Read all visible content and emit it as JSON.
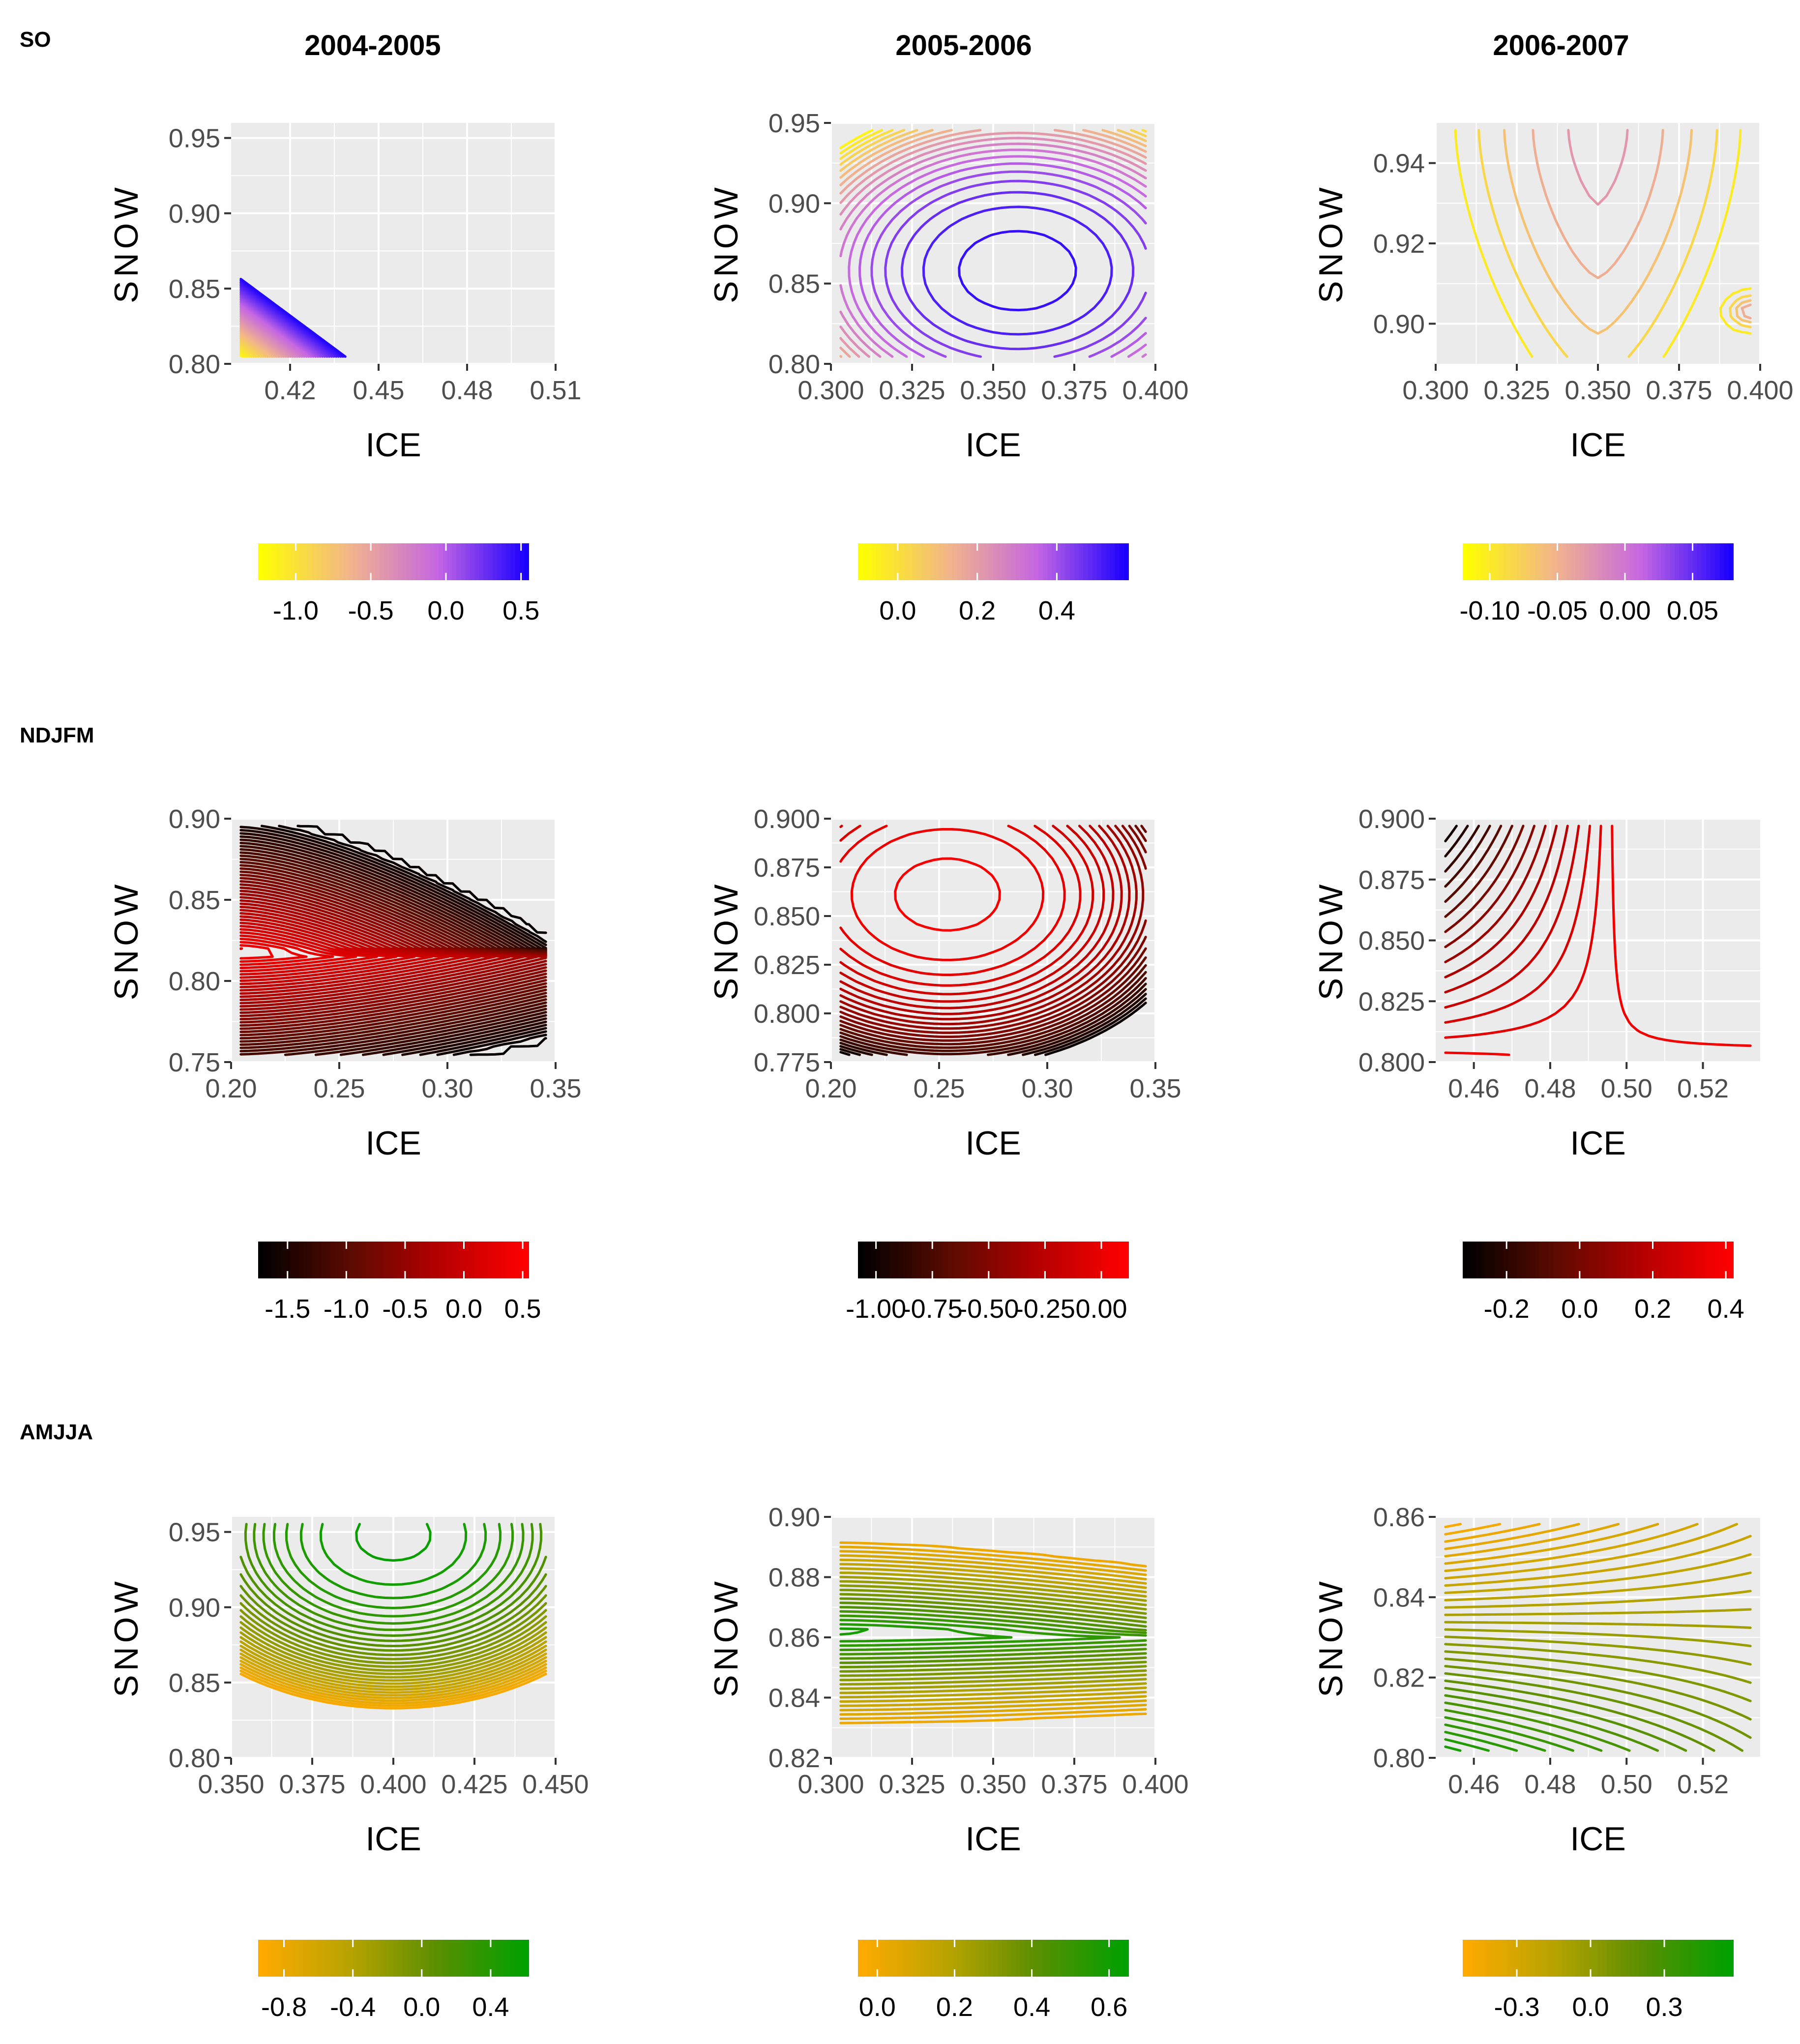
{
  "figure": {
    "column_titles": [
      "2004-2005",
      "2005-2006",
      "2006-2007"
    ],
    "row_labels": [
      "SO",
      "NDJFM",
      "AMJJA"
    ],
    "xlabel": "ICE",
    "ylabel": "SNOW"
  },
  "chart_data": [
    {
      "type": "contour",
      "row": "SO",
      "season": "SO",
      "year": "2004-2005",
      "xlabel": "ICE",
      "ylabel": "SNOW",
      "xlim": [
        0.4,
        0.51
      ],
      "ylim": [
        0.8,
        0.96
      ],
      "xticks": [
        0.42,
        0.45,
        0.48,
        0.51
      ],
      "xtick_labels": [
        "0.42",
        "0.45",
        "0.48",
        "0.51"
      ],
      "yticks": [
        0.8,
        0.85,
        0.9,
        0.95
      ],
      "ytick_labels": [
        "0.80",
        "0.85",
        "0.90",
        "0.95"
      ],
      "colorbar": {
        "colors": [
          "#ffff00",
          "#f2b58a",
          "#c566e3",
          "#1a00ff"
        ],
        "range": [
          -1.25,
          0.55
        ],
        "ticks": [
          -1.0,
          -0.5,
          0.0,
          0.5
        ],
        "tick_labels": [
          "-1.0",
          "-0.5",
          "0.0",
          "0.5"
        ]
      },
      "field": {
        "type": "plane",
        "v0": -1.2,
        "gx": 5,
        "gy": 5,
        "q": 0,
        "levels": 48
      }
    },
    {
      "type": "contour",
      "row": "SO",
      "season": "SO",
      "year": "2005-2006",
      "xlabel": "ICE",
      "ylabel": "SNOW",
      "xlim": [
        0.3,
        0.4
      ],
      "ylim": [
        0.8,
        0.95
      ],
      "xticks": [
        0.3,
        0.325,
        0.35,
        0.375,
        0.4
      ],
      "xtick_labels": [
        "0.300",
        "0.325",
        "0.350",
        "0.375",
        "0.400"
      ],
      "yticks": [
        0.8,
        0.85,
        0.9,
        0.95
      ],
      "ytick_labels": [
        "0.80",
        "0.85",
        "0.90",
        "0.95"
      ],
      "colorbar": {
        "colors": [
          "#ffff00",
          "#f2b58a",
          "#c566e3",
          "#1a00ff"
        ],
        "range": [
          -0.1,
          0.58
        ],
        "ticks": [
          0.0,
          0.2,
          0.4
        ],
        "tick_labels": [
          "0.0",
          "0.2",
          "0.4"
        ]
      },
      "field": {
        "type": "bowl",
        "vmax": 0.56,
        "v0": -0.08,
        "cx": 0.58,
        "cy": 0.38,
        "p": 1.3,
        "levels": 20
      }
    },
    {
      "type": "contour",
      "row": "SO",
      "season": "SO",
      "year": "2006-2007",
      "xlabel": "ICE",
      "ylabel": "SNOW",
      "xlim": [
        0.3,
        0.4
      ],
      "ylim": [
        0.89,
        0.95
      ],
      "xticks": [
        0.3,
        0.325,
        0.35,
        0.375,
        0.4
      ],
      "xtick_labels": [
        "0.300",
        "0.325",
        "0.350",
        "0.375",
        "0.400"
      ],
      "yticks": [
        0.9,
        0.92,
        0.94
      ],
      "ytick_labels": [
        "0.90",
        "0.92",
        "0.94"
      ],
      "colorbar": {
        "colors": [
          "#ffff00",
          "#f2b58a",
          "#c566e3",
          "#1a00ff"
        ],
        "range": [
          -0.12,
          0.08
        ],
        "ticks": [
          -0.1,
          -0.05,
          0.0,
          0.05
        ],
        "tick_labels": [
          "-0.10",
          "-0.05",
          "0.00",
          "0.05"
        ]
      },
      "field": {
        "type": "basin",
        "vmax": -0.02,
        "v0": -0.11,
        "cx": 0.5,
        "cy": 1.0,
        "spike": 0.08,
        "levels": 11
      }
    },
    {
      "type": "contour",
      "row": "NDJFM",
      "season": "NDJFM",
      "year": "2004-2005",
      "xlabel": "ICE",
      "ylabel": "SNOW",
      "xlim": [
        0.2,
        0.35
      ],
      "ylim": [
        0.75,
        0.9
      ],
      "xticks": [
        0.2,
        0.25,
        0.3,
        0.35
      ],
      "xtick_labels": [
        "0.20",
        "0.25",
        "0.30",
        "0.35"
      ],
      "yticks": [
        0.75,
        0.8,
        0.85,
        0.9
      ],
      "ytick_labels": [
        "0.75",
        "0.80",
        "0.85",
        "0.90"
      ],
      "colorbar": {
        "colors": [
          "#000000",
          "#5a0b00",
          "#b40000",
          "#ff0000"
        ],
        "range": [
          -1.75,
          0.55
        ],
        "ticks": [
          -1.5,
          -1.0,
          -0.5,
          0.0,
          0.5
        ],
        "tick_labels": [
          "-1.5",
          "-1.0",
          "-0.5",
          "0.0",
          "0.5"
        ]
      },
      "field": {
        "type": "ridge",
        "vmax": 0.5,
        "v0": -1.7,
        "cy": 0.45,
        "sy": 1.7,
        "gx": 0.9,
        "levels": 44
      }
    },
    {
      "type": "contour",
      "row": "NDJFM",
      "season": "NDJFM",
      "year": "2005-2006",
      "xlabel": "ICE",
      "ylabel": "SNOW",
      "xlim": [
        0.2,
        0.35
      ],
      "ylim": [
        0.775,
        0.9
      ],
      "xticks": [
        0.2,
        0.25,
        0.3,
        0.35
      ],
      "xtick_labels": [
        "0.20",
        "0.25",
        "0.30",
        "0.35"
      ],
      "yticks": [
        0.775,
        0.8,
        0.825,
        0.85,
        0.875,
        0.9
      ],
      "ytick_labels": [
        "0.775",
        "0.800",
        "0.825",
        "0.850",
        "0.875",
        "0.900"
      ],
      "colorbar": {
        "colors": [
          "#000000",
          "#5a0b00",
          "#b40000",
          "#ff0000"
        ],
        "range": [
          -1.08,
          0.12
        ],
        "ticks": [
          -1.0,
          -0.75,
          -0.5,
          -0.25,
          0.0
        ],
        "tick_labels": [
          "-1.00",
          "-0.75",
          "-0.50",
          "-0.25",
          "0.00"
        ]
      },
      "field": {
        "type": "bowl",
        "vmax": 0.08,
        "v0": -1.05,
        "cx": 0.35,
        "cy": 0.7,
        "p": 1.5,
        "levels": 24
      }
    },
    {
      "type": "contour",
      "row": "NDJFM",
      "season": "NDJFM",
      "year": "2006-2007",
      "xlabel": "ICE",
      "ylabel": "SNOW",
      "xlim": [
        0.45,
        0.535
      ],
      "ylim": [
        0.8,
        0.9
      ],
      "xticks": [
        0.46,
        0.48,
        0.5,
        0.52
      ],
      "xtick_labels": [
        "0.46",
        "0.48",
        "0.50",
        "0.52"
      ],
      "yticks": [
        0.8,
        0.825,
        0.85,
        0.875,
        0.9
      ],
      "ytick_labels": [
        "0.800",
        "0.825",
        "0.850",
        "0.875",
        "0.900"
      ],
      "colorbar": {
        "colors": [
          "#000000",
          "#5a0b00",
          "#b40000",
          "#ff0000"
        ],
        "range": [
          -0.32,
          0.42
        ],
        "ticks": [
          -0.2,
          0.0,
          0.2,
          0.4
        ],
        "tick_labels": [
          "-0.2",
          "0.0",
          "0.2",
          "0.4"
        ]
      },
      "field": {
        "type": "plane",
        "v0": 0.38,
        "gx": -0.03,
        "gy": -0.7,
        "q": 1.3,
        "levels": 16
      }
    },
    {
      "type": "contour",
      "row": "AMJJA",
      "season": "AMJJA",
      "year": "2004-2005",
      "xlabel": "ICE",
      "ylabel": "SNOW",
      "xlim": [
        0.35,
        0.45
      ],
      "ylim": [
        0.8,
        0.96
      ],
      "xticks": [
        0.35,
        0.375,
        0.4,
        0.425,
        0.45
      ],
      "xtick_labels": [
        "0.350",
        "0.375",
        "0.400",
        "0.425",
        "0.450"
      ],
      "yticks": [
        0.8,
        0.85,
        0.9,
        0.95
      ],
      "ytick_labels": [
        "0.80",
        "0.85",
        "0.90",
        "0.95"
      ],
      "colorbar": {
        "colors": [
          "#ffaa00",
          "#b8a300",
          "#5a8f00",
          "#00a000"
        ],
        "range": [
          -0.95,
          0.62
        ],
        "ticks": [
          -0.8,
          -0.4,
          0.0,
          0.4
        ],
        "tick_labels": [
          "-0.8",
          "-0.4",
          "0.0",
          "0.4"
        ]
      },
      "field": {
        "type": "bowl",
        "vmax": 0.58,
        "v0": -0.9,
        "cx": 0.5,
        "cy": 0.95,
        "p": 1.25,
        "levels": 30
      }
    },
    {
      "type": "contour",
      "row": "AMJJA",
      "season": "AMJJA",
      "year": "2005-2006",
      "xlabel": "ICE",
      "ylabel": "SNOW",
      "xlim": [
        0.3,
        0.4
      ],
      "ylim": [
        0.82,
        0.9
      ],
      "xticks": [
        0.3,
        0.325,
        0.35,
        0.375,
        0.4
      ],
      "xtick_labels": [
        "0.300",
        "0.325",
        "0.350",
        "0.375",
        "0.400"
      ],
      "yticks": [
        0.82,
        0.84,
        0.86,
        0.88,
        0.9
      ],
      "ytick_labels": [
        "0.82",
        "0.84",
        "0.86",
        "0.88",
        "0.90"
      ],
      "colorbar": {
        "colors": [
          "#ffaa00",
          "#b8a300",
          "#5a8f00",
          "#00a000"
        ],
        "range": [
          -0.05,
          0.65
        ],
        "ticks": [
          0.0,
          0.2,
          0.4,
          0.6
        ],
        "tick_labels": [
          "0.0",
          "0.2",
          "0.4",
          "0.6"
        ]
      },
      "field": {
        "type": "ridge",
        "vmax": 0.62,
        "v0": -0.02,
        "cy": 0.52,
        "sy": 2.4,
        "gx": 0.25,
        "levels": 24
      }
    },
    {
      "type": "contour",
      "row": "AMJJA",
      "season": "AMJJA",
      "year": "2006-2007",
      "xlabel": "ICE",
      "ylabel": "SNOW",
      "xlim": [
        0.45,
        0.535
      ],
      "ylim": [
        0.8,
        0.86
      ],
      "xticks": [
        0.46,
        0.48,
        0.5,
        0.52
      ],
      "xtick_labels": [
        "0.46",
        "0.48",
        "0.50",
        "0.52"
      ],
      "yticks": [
        0.8,
        0.82,
        0.84,
        0.86
      ],
      "ytick_labels": [
        "0.80",
        "0.82",
        "0.84",
        "0.86"
      ],
      "colorbar": {
        "colors": [
          "#ffaa00",
          "#b8a300",
          "#5a8f00",
          "#00a000"
        ],
        "range": [
          -0.52,
          0.58
        ],
        "ticks": [
          -0.3,
          0.0,
          0.3
        ],
        "tick_labels": [
          "-0.3",
          "0.0",
          "0.3"
        ]
      },
      "field": {
        "type": "plane",
        "v0": 0.5,
        "gx": -0.35,
        "gy": -1.0,
        "q": 0.6,
        "levels": 34
      }
    }
  ]
}
